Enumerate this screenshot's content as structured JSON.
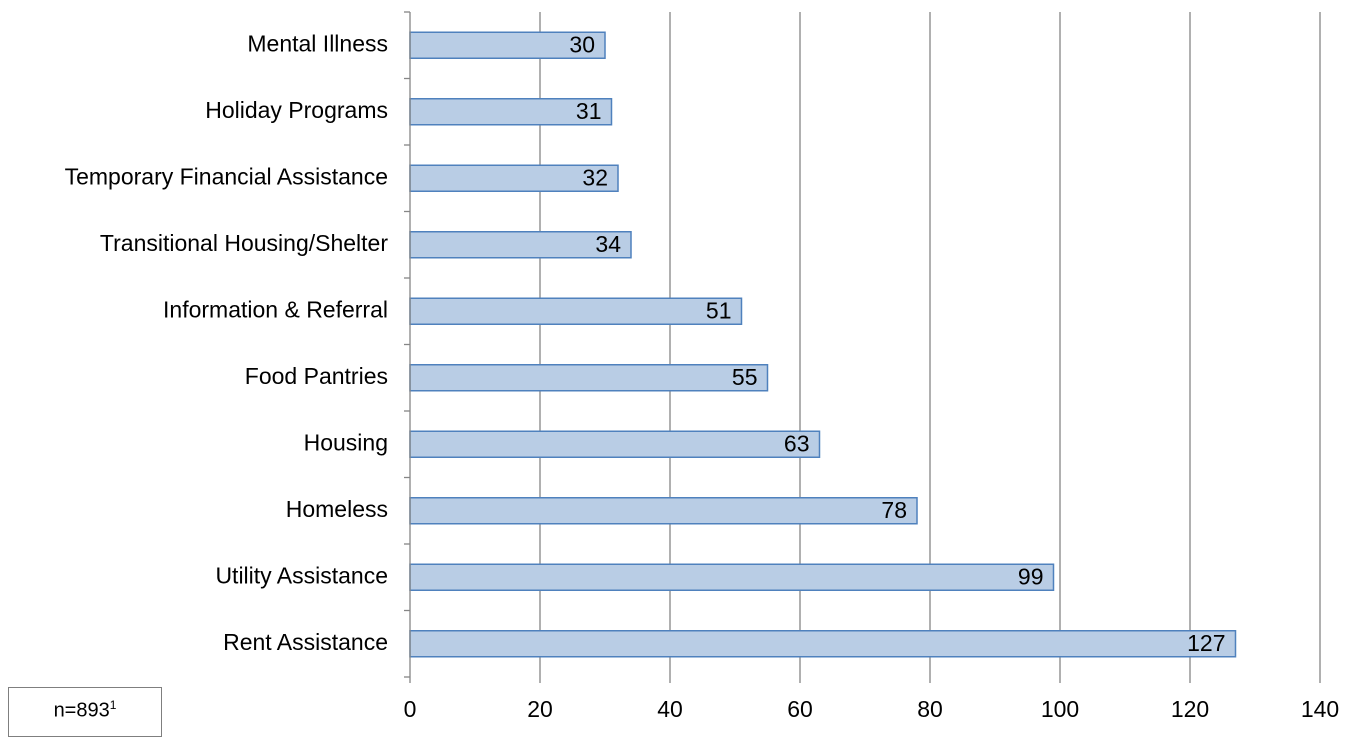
{
  "chart_data": {
    "type": "bar",
    "orientation": "horizontal",
    "categories": [
      "Mental Illness",
      "Holiday Programs",
      "Temporary Financial Assistance",
      "Transitional Housing/Shelter",
      "Information & Referral",
      "Food Pantries",
      "Housing",
      "Homeless",
      "Utility Assistance",
      "Rent Assistance"
    ],
    "values": [
      30,
      31,
      32,
      34,
      51,
      55,
      63,
      78,
      99,
      127
    ],
    "xlim": [
      0,
      140
    ],
    "xticks": [
      0,
      20,
      40,
      60,
      80,
      100,
      120,
      140
    ],
    "grid": "vertical",
    "bar_color": "#b9cde5",
    "bar_border": "#4f81bd",
    "data_labels": true
  },
  "note": {
    "text": "n=893",
    "superscript": "1"
  }
}
